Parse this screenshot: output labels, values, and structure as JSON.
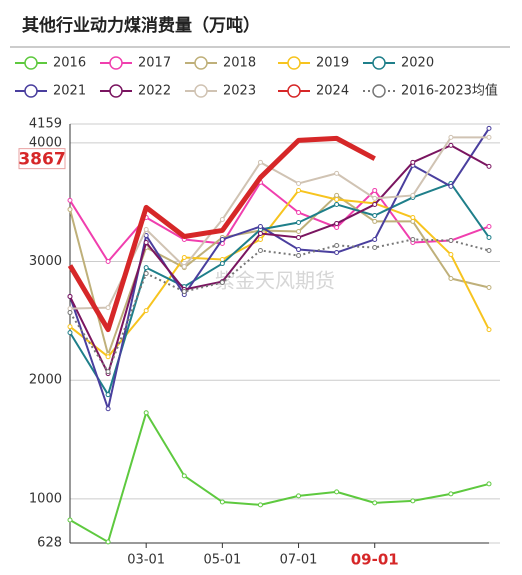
{
  "chart_data": {
    "type": "line",
    "title": "其他行业动力煤消费量（万吨）",
    "watermark": "紫金天风期货",
    "categories": [
      null,
      null,
      "03-01",
      null,
      "05-01",
      null,
      "07-01",
      null,
      "09-01",
      null,
      null,
      null
    ],
    "ylim": [
      628,
      4159
    ],
    "yticks": [
      628,
      1000,
      2000,
      3000,
      4000,
      4159
    ],
    "grid": true,
    "series": [
      {
        "name": "2016",
        "color": "#5ec93f",
        "values": [
          822,
          637,
          1726,
          1194,
          974,
          949,
          1025,
          1059,
          966,
          983,
          1042,
          1126
        ]
      },
      {
        "name": "2017",
        "color": "#f03fae",
        "values": [
          3515,
          3000,
          3371,
          3186,
          3152,
          3667,
          3413,
          3287,
          3599,
          3160,
          3177,
          3295
        ]
      },
      {
        "name": "2018",
        "color": "#bfb07a",
        "values": [
          3439,
          2215,
          3118,
          2949,
          3203,
          3262,
          3253,
          3557,
          3338,
          3338,
          2857,
          2781
        ]
      },
      {
        "name": "2019",
        "color": "#f7c41f",
        "values": [
          2451,
          2198,
          2586,
          3034,
          3017,
          3186,
          3599,
          3523,
          3490,
          3371,
          3059,
          2426
        ]
      },
      {
        "name": "2020",
        "color": "#1f7f8a",
        "values": [
          2401,
          1878,
          2949,
          2789,
          2983,
          3270,
          3329,
          3481,
          3388,
          3540,
          3658,
          3203
        ]
      },
      {
        "name": "2021",
        "color": "#4a3f9e",
        "values": [
          2705,
          1759,
          3219,
          2721,
          3186,
          3295,
          3101,
          3076,
          3186,
          3810,
          3633,
          4122
        ]
      },
      {
        "name": "2022",
        "color": "#7a1560",
        "values": [
          2705,
          2055,
          3160,
          2764,
          2831,
          3236,
          3203,
          3321,
          3481,
          3836,
          3979,
          3802
        ]
      },
      {
        "name": "2023",
        "color": "#d0c3b3",
        "values": [
          2603,
          2612,
          3270,
          2958,
          3354,
          3836,
          3658,
          3743,
          3532,
          3557,
          4046,
          4046
        ]
      },
      {
        "name": "2024",
        "color": "#d62728",
        "values": [
          2966,
          2426,
          3456,
          3211,
          3262,
          3709,
          4021,
          4038,
          3867,
          null,
          null,
          null
        ]
      },
      {
        "name": "2016-2023均值",
        "color": "#777777",
        "dashed": true,
        "values": [
          2570,
          2072,
          2899,
          2747,
          2823,
          3093,
          3051,
          3135,
          3118,
          3186,
          3177,
          3093
        ]
      }
    ]
  }
}
